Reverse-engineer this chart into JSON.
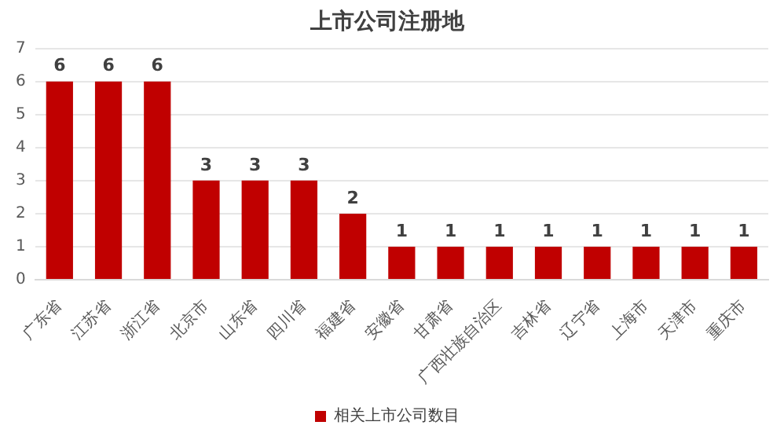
{
  "chart_data": {
    "type": "bar",
    "title": "上市公司注册地",
    "categories": [
      "广东省",
      "江苏省",
      "浙江省",
      "北京市",
      "山东省",
      "四川省",
      "福建省",
      "安徽省",
      "甘肃省",
      "广西壮族自治区",
      "吉林省",
      "辽宁省",
      "上海市",
      "天津市",
      "重庆市"
    ],
    "series": [
      {
        "name": "相关上市公司数目",
        "color": "#c00000",
        "values": [
          6,
          6,
          6,
          3,
          3,
          3,
          2,
          1,
          1,
          1,
          1,
          1,
          1,
          1,
          1
        ]
      }
    ],
    "ylim": [
      0,
      7
    ],
    "yticks": [
      0,
      1,
      2,
      3,
      4,
      5,
      6,
      7
    ],
    "grid": "y",
    "legend": "bottom",
    "data_labels": true
  }
}
